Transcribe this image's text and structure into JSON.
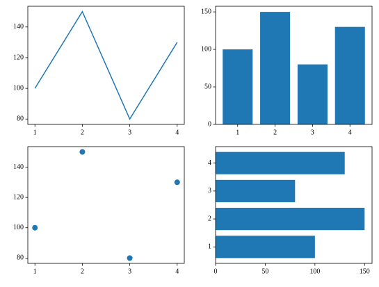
{
  "chart_data": [
    {
      "type": "line",
      "x": [
        1,
        2,
        3,
        4
      ],
      "values": [
        100,
        150,
        80,
        130
      ],
      "color": "#1f77b4",
      "xlim": [
        0.85,
        4.15
      ],
      "xticks": [
        1,
        2,
        3,
        4
      ],
      "ylim": [
        76.5,
        153.5
      ],
      "yticks": [
        80,
        100,
        120,
        140
      ]
    },
    {
      "type": "bar",
      "x": [
        1,
        2,
        3,
        4
      ],
      "values": [
        100,
        150,
        80,
        130
      ],
      "color": "#1f77b4",
      "xlim": [
        0.41,
        4.59
      ],
      "xticks": [
        1,
        2,
        3,
        4
      ],
      "ylim": [
        0,
        157.5
      ],
      "yticks": [
        0,
        50,
        100,
        150
      ]
    },
    {
      "type": "scatter",
      "x": [
        1,
        2,
        3,
        4
      ],
      "values": [
        100,
        150,
        80,
        130
      ],
      "color": "#1f77b4",
      "xlim": [
        0.85,
        4.15
      ],
      "xticks": [
        1,
        2,
        3,
        4
      ],
      "ylim": [
        76.5,
        153.5
      ],
      "yticks": [
        80,
        100,
        120,
        140
      ]
    },
    {
      "type": "barh",
      "y": [
        1,
        2,
        3,
        4
      ],
      "values": [
        100,
        150,
        80,
        130
      ],
      "color": "#1f77b4",
      "xlim": [
        0,
        157.5
      ],
      "xticks": [
        0,
        50,
        100,
        150
      ],
      "ylim": [
        0.41,
        4.59
      ],
      "yticks": [
        1,
        2,
        3,
        4
      ]
    }
  ]
}
